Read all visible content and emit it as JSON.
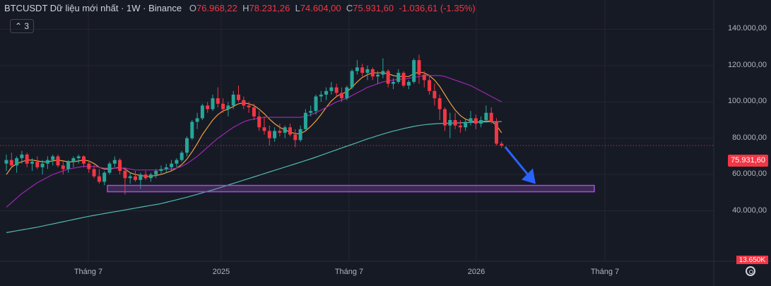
{
  "header": {
    "symbol": "BTCUSDT Dữ liệu mới nhất · 1W · Binance",
    "open_label": "O",
    "open": "76.968,22",
    "high_label": "H",
    "high": "78.231,26",
    "low_label": "L",
    "low": "74.604,00",
    "close_label": "C",
    "close": "75.931,60",
    "change": "-1.036,61 (-1.35%)"
  },
  "indicator_badge": "3",
  "price_axis": [
    "140.000,00",
    "120.000,00",
    "100.000,00",
    "80.000,00",
    "60.000,00",
    "40.000,00"
  ],
  "last_price": "75.931,60",
  "low_tag": "13.650K",
  "time_axis": [
    "Tháng 7",
    "2025",
    "Tháng 7",
    "2026",
    "Tháng 7"
  ],
  "colors": {
    "background": "#161a25",
    "up": "#26a69a",
    "down": "#f23645",
    "ma_short": "#f0a040",
    "ma_mid": "#9c27b0",
    "ma_long": "#4fb8b0",
    "zone": "#a050d0",
    "arrow": "#2962ff"
  },
  "chart_data": {
    "type": "candlestick",
    "interval": "1W",
    "ylim": [
      13650,
      145000
    ],
    "y_ticks": [
      40000,
      60000,
      80000,
      100000,
      120000,
      140000
    ],
    "x_ticks": [
      "Tháng 7",
      "2025",
      "Tháng 7",
      "2026",
      "Tháng 7"
    ],
    "series": [
      {
        "name": "BTCUSDT",
        "kind": "candles",
        "ohlc": [
          [
            66000,
            71000,
            62000,
            68000
          ],
          [
            68000,
            72000,
            64000,
            65000
          ],
          [
            65000,
            70000,
            61000,
            69000
          ],
          [
            69000,
            73000,
            66000,
            71000
          ],
          [
            71000,
            72000,
            64000,
            66000
          ],
          [
            66000,
            69000,
            62000,
            67000
          ],
          [
            67000,
            70000,
            63000,
            64000
          ],
          [
            64000,
            68000,
            60000,
            66000
          ],
          [
            66000,
            70000,
            63000,
            68000
          ],
          [
            68000,
            71000,
            65000,
            70000
          ],
          [
            70000,
            71000,
            64000,
            65000
          ],
          [
            65000,
            67000,
            60000,
            63000
          ],
          [
            63000,
            68000,
            61000,
            67000
          ],
          [
            67000,
            70000,
            64000,
            69000
          ],
          [
            69000,
            71000,
            66000,
            70000
          ],
          [
            70000,
            70500,
            64000,
            66000
          ],
          [
            66000,
            67000,
            61000,
            63000
          ],
          [
            63000,
            65000,
            58000,
            59000
          ],
          [
            59000,
            63000,
            55000,
            56000
          ],
          [
            56000,
            62000,
            54000,
            61000
          ],
          [
            61000,
            67000,
            60000,
            66000
          ],
          [
            66000,
            70000,
            64000,
            68000
          ],
          [
            68000,
            69000,
            60000,
            62000
          ],
          [
            62000,
            64000,
            49000,
            58000
          ],
          [
            58000,
            61000,
            55000,
            59000
          ],
          [
            59000,
            62000,
            56000,
            57000
          ],
          [
            57000,
            61000,
            52000,
            60000
          ],
          [
            60000,
            62000,
            57000,
            58000
          ],
          [
            58000,
            61000,
            56000,
            60000
          ],
          [
            60000,
            63000,
            58000,
            62000
          ],
          [
            62000,
            65000,
            60000,
            63000
          ],
          [
            63000,
            66000,
            61000,
            64000
          ],
          [
            64000,
            68000,
            62000,
            66000
          ],
          [
            66000,
            69000,
            64000,
            68000
          ],
          [
            68000,
            73000,
            67000,
            72000
          ],
          [
            72000,
            81000,
            70000,
            80000
          ],
          [
            80000,
            90000,
            79000,
            89000
          ],
          [
            89000,
            94000,
            85000,
            91000
          ],
          [
            91000,
            99000,
            90000,
            98000
          ],
          [
            98000,
            100000,
            94000,
            96000
          ],
          [
            96000,
            104000,
            95000,
            102000
          ],
          [
            102000,
            108000,
            97000,
            99000
          ],
          [
            99000,
            102000,
            94000,
            96000
          ],
          [
            96000,
            100000,
            92000,
            98000
          ],
          [
            98000,
            106000,
            96000,
            104000
          ],
          [
            104000,
            109000,
            100000,
            101000
          ],
          [
            101000,
            103000,
            96000,
            98000
          ],
          [
            98000,
            100000,
            94000,
            97000
          ],
          [
            97000,
            99000,
            90000,
            92000
          ],
          [
            92000,
            95000,
            84000,
            86000
          ],
          [
            86000,
            92000,
            82000,
            84000
          ],
          [
            84000,
            87000,
            76000,
            80000
          ],
          [
            80000,
            86000,
            78000,
            84000
          ],
          [
            84000,
            88000,
            81000,
            83000
          ],
          [
            83000,
            87000,
            80000,
            86000
          ],
          [
            86000,
            88000,
            81000,
            82000
          ],
          [
            82000,
            85000,
            75000,
            79000
          ],
          [
            79000,
            87000,
            78000,
            85000
          ],
          [
            85000,
            96000,
            84000,
            94000
          ],
          [
            94000,
            98000,
            92000,
            95000
          ],
          [
            95000,
            104000,
            93000,
            103000
          ],
          [
            103000,
            106000,
            100000,
            104000
          ],
          [
            104000,
            108000,
            101000,
            106000
          ],
          [
            106000,
            111000,
            104000,
            108000
          ],
          [
            108000,
            110000,
            103000,
            105000
          ],
          [
            105000,
            108000,
            100000,
            102000
          ],
          [
            102000,
            109000,
            101000,
            108000
          ],
          [
            108000,
            118000,
            107000,
            117000
          ],
          [
            117000,
            123000,
            115000,
            119000
          ],
          [
            119000,
            121000,
            114000,
            116000
          ],
          [
            116000,
            120000,
            112000,
            118000
          ],
          [
            118000,
            119000,
            112000,
            114000
          ],
          [
            114000,
            117000,
            110000,
            115000
          ],
          [
            115000,
            124000,
            113000,
            117000
          ],
          [
            117000,
            118000,
            108000,
            110000
          ],
          [
            110000,
            113000,
            107000,
            111000
          ],
          [
            111000,
            118000,
            110000,
            116000
          ],
          [
            116000,
            117000,
            108000,
            109000
          ],
          [
            109000,
            112000,
            107000,
            111000
          ],
          [
            111000,
            124000,
            110000,
            123000
          ],
          [
            123000,
            126000,
            110000,
            115000
          ],
          [
            115000,
            117000,
            108000,
            112000
          ],
          [
            112000,
            115000,
            104000,
            106000
          ],
          [
            106000,
            110000,
            98000,
            102000
          ],
          [
            102000,
            104000,
            90000,
            96000
          ],
          [
            96000,
            97000,
            84000,
            87000
          ],
          [
            87000,
            94000,
            80000,
            90000
          ],
          [
            90000,
            94000,
            85000,
            87000
          ],
          [
            87000,
            90000,
            83000,
            86000
          ],
          [
            86000,
            91000,
            84000,
            89000
          ],
          [
            89000,
            95000,
            87000,
            91000
          ],
          [
            91000,
            93000,
            85000,
            88000
          ],
          [
            88000,
            92000,
            86000,
            90000
          ],
          [
            90000,
            98000,
            89000,
            94000
          ],
          [
            94000,
            97000,
            88000,
            89000
          ],
          [
            89000,
            91000,
            76000,
            77000
          ],
          [
            76968.22,
            78231.26,
            74604.0,
            75931.6
          ]
        ]
      },
      {
        "name": "",
        "kind": "line",
        "color_key": "ma_short",
        "values": [
          60000,
          64000,
          66000,
          67000,
          68000,
          68000,
          67500,
          67000,
          67000,
          67500,
          68000,
          67500,
          67000,
          67000,
          67500,
          68000,
          67500,
          66000,
          64000,
          63000,
          63000,
          63500,
          64000,
          63000,
          61000,
          60000,
          59500,
          59000,
          59000,
          59500,
          60000,
          61000,
          62000,
          63500,
          65500,
          68500,
          72500,
          77000,
          82000,
          86000,
          90000,
          93000,
          95000,
          96000,
          97500,
          99000,
          99500,
          99000,
          98000,
          96000,
          93500,
          90500,
          88000,
          86000,
          84500,
          83500,
          82500,
          82500,
          84000,
          86500,
          89500,
          93000,
          97000,
          100500,
          103000,
          104500,
          105500,
          108000,
          111000,
          113500,
          115000,
          116000,
          116000,
          116000,
          115500,
          114500,
          114000,
          114000,
          114000,
          115500,
          116500,
          116000,
          114500,
          112000,
          108500,
          104000,
          99500,
          95500,
          92500,
          90500,
          89500,
          89000,
          89000,
          89500,
          89500,
          87000,
          83000
        ]
      },
      {
        "name": "",
        "kind": "line",
        "color_key": "ma_mid",
        "values": [
          42000,
          44500,
          47000,
          49500,
          51500,
          53500,
          55500,
          57000,
          58500,
          60000,
          61000,
          62000,
          63000,
          63500,
          64000,
          64500,
          64500,
          64500,
          64000,
          63500,
          63500,
          63500,
          63500,
          63500,
          63000,
          62500,
          62500,
          62500,
          62500,
          62500,
          62500,
          63000,
          63000,
          63500,
          64500,
          66000,
          68000,
          70000,
          72500,
          75000,
          77500,
          80000,
          82000,
          84000,
          86000,
          87500,
          89000,
          90000,
          90500,
          91000,
          91500,
          91500,
          91500,
          91500,
          91500,
          91500,
          91500,
          91500,
          92000,
          93000,
          94000,
          95500,
          97000,
          98500,
          100000,
          101000,
          102000,
          103500,
          105000,
          106500,
          108000,
          109000,
          110000,
          111000,
          111500,
          112000,
          112500,
          112500,
          113000,
          113500,
          114000,
          114500,
          114500,
          114500,
          114500,
          114000,
          113000,
          112000,
          111000,
          110000,
          109000,
          107500,
          106000,
          104500,
          103000,
          101500,
          100000
        ]
      },
      {
        "name": "",
        "kind": "line",
        "color_key": "ma_long",
        "values": [
          28000,
          28500,
          29000,
          29500,
          30000,
          30500,
          31000,
          31600,
          32200,
          32800,
          33400,
          34000,
          34600,
          35200,
          35800,
          36400,
          37000,
          37500,
          38000,
          38500,
          39000,
          39500,
          40000,
          40500,
          41000,
          41500,
          42000,
          42500,
          43000,
          43500,
          44000,
          44700,
          45400,
          46100,
          46800,
          47500,
          48300,
          49100,
          49900,
          50700,
          51500,
          52400,
          53300,
          54200,
          55100,
          56000,
          56900,
          57800,
          58700,
          59600,
          60500,
          61400,
          62300,
          63200,
          64100,
          65000,
          65900,
          66800,
          67700,
          68600,
          69600,
          70600,
          71600,
          72600,
          73600,
          74600,
          75600,
          76600,
          77600,
          78600,
          79600,
          80500,
          81400,
          82300,
          83100,
          83900,
          84600,
          85300,
          85900,
          86500,
          87000,
          87400,
          87700,
          87900,
          88100,
          88200,
          88300,
          88400,
          88500,
          88600,
          88700,
          88800,
          88900,
          89000,
          89100,
          89100,
          89200
        ]
      }
    ],
    "annotations": [
      {
        "type": "rectangle",
        "y_range": [
          50500,
          54000
        ],
        "color_key": "zone"
      },
      {
        "type": "arrow",
        "from_price": 76000,
        "to_price": 54000,
        "color_key": "arrow"
      },
      {
        "type": "horizontal_line",
        "price": 75931.6,
        "style": "dotted",
        "color_key": "down"
      }
    ]
  }
}
